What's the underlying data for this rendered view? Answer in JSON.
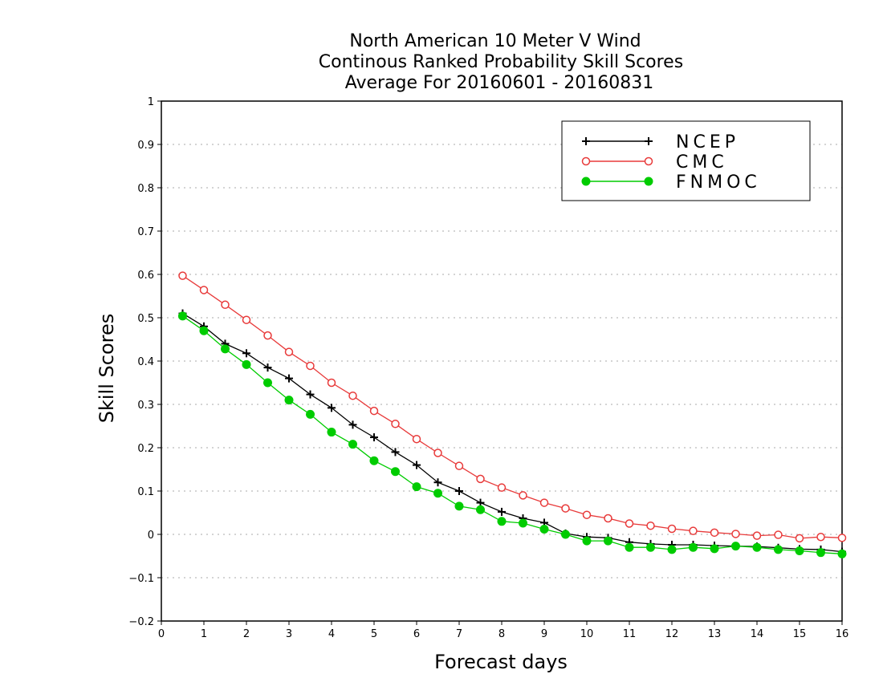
{
  "chart_data": {
    "type": "line",
    "title": [
      "North American 10 Meter V Wind",
      "Continous Ranked Probability Skill Scores",
      "Average For 20160601 - 20160831"
    ],
    "xlabel": "Forecast days",
    "ylabel": "Skill Scores",
    "xlim": [
      0,
      16
    ],
    "ylim": [
      -0.2,
      1
    ],
    "xticks": [
      "0",
      "1",
      "2",
      "3",
      "4",
      "5",
      "6",
      "7",
      "8",
      "9",
      "10",
      "11",
      "12",
      "13",
      "14",
      "15",
      "16"
    ],
    "yticks": [
      "−0.2",
      "−0.1",
      "0",
      "0.1",
      "0.2",
      "0.3",
      "0.4",
      "0.5",
      "0.6",
      "0.7",
      "0.8",
      "0.9",
      "1"
    ],
    "grid": "horizontal dotted",
    "legend_position": "top-right",
    "x": [
      0.5,
      1,
      1.5,
      2,
      2.5,
      3,
      3.5,
      4,
      4.5,
      5,
      5.5,
      6,
      6.5,
      7,
      7.5,
      8,
      8.5,
      9,
      9.5,
      10,
      10.5,
      11,
      11.5,
      12,
      12.5,
      13,
      13.5,
      14,
      14.5,
      15,
      15.5,
      16
    ],
    "series": [
      {
        "name": "NCEP",
        "color": "#000000",
        "marker": "plus",
        "values": [
          0.51,
          0.48,
          0.44,
          0.418,
          0.385,
          0.36,
          0.323,
          0.292,
          0.253,
          0.224,
          0.19,
          0.16,
          0.12,
          0.1,
          0.073,
          0.052,
          0.037,
          0.027,
          0.002,
          -0.006,
          -0.008,
          -0.018,
          -0.022,
          -0.024,
          -0.024,
          -0.026,
          -0.027,
          -0.028,
          -0.031,
          -0.034,
          -0.035,
          -0.04
        ]
      },
      {
        "name": "CMC",
        "color": "#e83a3a",
        "marker": "open-circle",
        "values": [
          0.597,
          0.564,
          0.53,
          0.495,
          0.459,
          0.421,
          0.389,
          0.35,
          0.32,
          0.285,
          0.255,
          0.22,
          0.188,
          0.158,
          0.128,
          0.108,
          0.09,
          0.073,
          0.06,
          0.045,
          0.037,
          0.025,
          0.02,
          0.013,
          0.008,
          0.004,
          0.001,
          -0.003,
          -0.001,
          -0.009,
          -0.006,
          -0.008
        ]
      },
      {
        "name": "FNMOC",
        "color": "#00cc00",
        "marker": "filled-circle",
        "values": [
          0.504,
          0.47,
          0.428,
          0.392,
          0.35,
          0.31,
          0.277,
          0.236,
          0.208,
          0.17,
          0.145,
          0.11,
          0.095,
          0.065,
          0.057,
          0.03,
          0.026,
          0.012,
          0.0,
          -0.015,
          -0.015,
          -0.03,
          -0.03,
          -0.035,
          -0.03,
          -0.033,
          -0.027,
          -0.03,
          -0.035,
          -0.038,
          -0.042,
          -0.045
        ]
      }
    ]
  }
}
